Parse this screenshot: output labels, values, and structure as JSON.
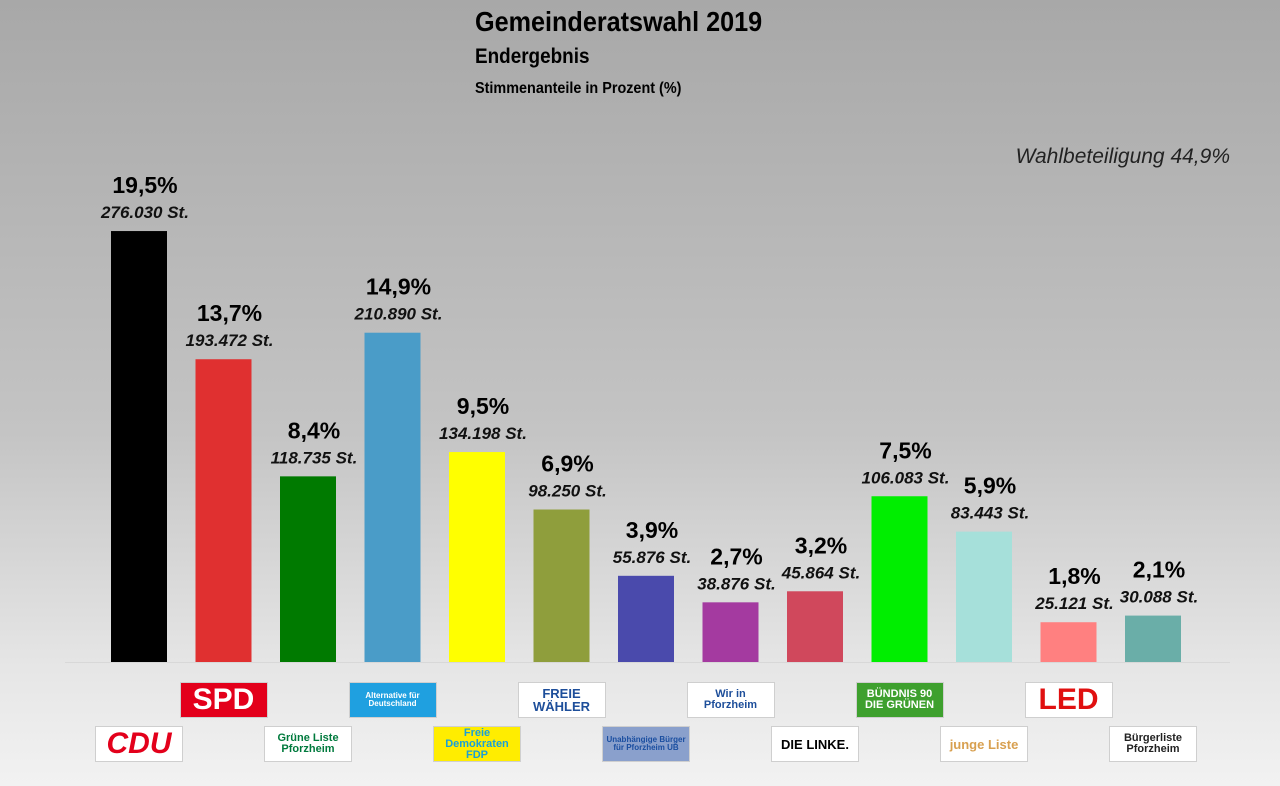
{
  "header": {
    "title": "Gemeinderatswahl 2019",
    "subtitle": "Endergebnis",
    "unit_note": "Stimmenanteile in Prozent (%)",
    "turnout": "Wahlbeteiligung 44,9%"
  },
  "chart_data": {
    "type": "bar",
    "title": "Gemeinderatswahl 2019",
    "subtitle": "Endergebnis",
    "ylabel": "Stimmenanteile in Prozent (%)",
    "ylim": [
      0,
      20
    ],
    "grid": false,
    "categories": [
      "CDU",
      "SPD",
      "Grüne Liste Pforzheim",
      "AfD",
      "FDP",
      "Freie Wähler",
      "Unabhängige Bürger",
      "Wir in Pforzheim",
      "Die Linke",
      "Bündnis 90 / Die Grünen",
      "Junge Liste",
      "LED",
      "Bürgerliste Pforzheim"
    ],
    "values": [
      19.5,
      13.7,
      8.4,
      14.9,
      9.5,
      6.9,
      3.9,
      2.7,
      3.2,
      7.5,
      5.9,
      1.8,
      2.1
    ],
    "value_labels": [
      "19,5%",
      "13,7%",
      "8,4%",
      "14,9%",
      "9,5%",
      "6,9%",
      "3,9%",
      "2,7%",
      "3,2%",
      "7,5%",
      "5,9%",
      "1,8%",
      "2,1%"
    ],
    "votes": [
      "276.030 St.",
      "193.472 St.",
      "118.735 St.",
      "210.890 St.",
      "134.198 St.",
      "98.250 St.",
      "55.876 St.",
      "38.876 St.",
      "45.864 St.",
      "106.083 St.",
      "83.443 St.",
      "25.121 St.",
      "30.088 St."
    ],
    "colors": [
      "#000000",
      "#e03030",
      "#007a00",
      "#4a9cc8",
      "#ffff00",
      "#8f9e3c",
      "#4a4aac",
      "#a43aa0",
      "#d0485c",
      "#00ee00",
      "#a6e0da",
      "#ff8080",
      "#6aaea8"
    ]
  },
  "logos": [
    {
      "text": "CDU",
      "row": "bottom",
      "bg": "#ffffff",
      "fg": "#e3001b"
    },
    {
      "text": "SPD",
      "row": "top",
      "bg": "#e3001b",
      "fg": "#ffffff"
    },
    {
      "text": "Grüne Liste Pforzheim",
      "row": "bottom",
      "bg": "#ffffff",
      "fg": "#007a3d"
    },
    {
      "text": "Alternative für Deutschland",
      "row": "top",
      "bg": "#1fa0e0",
      "fg": "#ffffff"
    },
    {
      "text": "Freie Demokraten FDP",
      "row": "bottom",
      "bg": "#ffed00",
      "fg": "#1a9fd8"
    },
    {
      "text": "FREIE WÄHLER",
      "row": "top",
      "bg": "#ffffff",
      "fg": "#1d4e9a"
    },
    {
      "text": "Unabhängige Bürger für Pforzheim UB",
      "row": "bottom",
      "bg": "#8aa0cc",
      "fg": "#1a4ea0"
    },
    {
      "text": "Wir in Pforzheim",
      "row": "top",
      "bg": "#ffffff",
      "fg": "#1d4e9a"
    },
    {
      "text": "DIE LINKE.",
      "row": "bottom",
      "bg": "#ffffff",
      "fg": "#000000"
    },
    {
      "text": "BÜNDNIS 90 DIE GRÜNEN",
      "row": "top",
      "bg": "#3ea02e",
      "fg": "#ffffff"
    },
    {
      "text": "junge Liste",
      "row": "bottom",
      "bg": "#ffffff",
      "fg": "#d8a050"
    },
    {
      "text": "LED",
      "row": "top",
      "bg": "#ffffff",
      "fg": "#e01010"
    },
    {
      "text": "Bürgerliste Pforzheim",
      "row": "bottom",
      "bg": "#ffffff",
      "fg": "#222222"
    }
  ]
}
